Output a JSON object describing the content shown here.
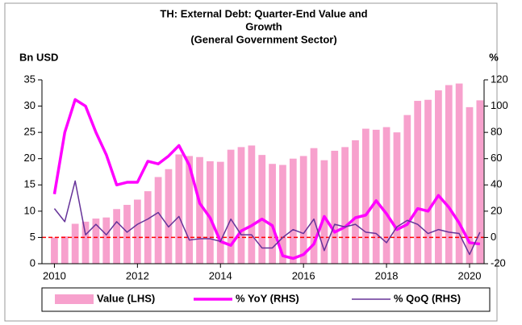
{
  "chart_data": {
    "type": "combo",
    "title": [
      "TH: External Debt: Quarter-End Value and",
      "Growth",
      "(General Government Sector)"
    ],
    "y_label": "Bn USD",
    "y2_label": "%",
    "x": [
      2010,
      2010.25,
      2010.5,
      2010.75,
      2011,
      2011.25,
      2011.5,
      2011.75,
      2012,
      2012.25,
      2012.5,
      2012.75,
      2013,
      2013.25,
      2013.5,
      2013.75,
      2014,
      2014.25,
      2014.5,
      2014.75,
      2015,
      2015.25,
      2015.5,
      2015.75,
      2016,
      2016.25,
      2016.5,
      2016.75,
      2017,
      2017.25,
      2017.5,
      2017.75,
      2018,
      2018.25,
      2018.5,
      2018.75,
      2019,
      2019.25,
      2019.5,
      2019.75,
      2020,
      2020.25
    ],
    "series": [
      {
        "name": "Value (LHS)",
        "kind": "bar",
        "axis": "y",
        "color": "#f7a1cd",
        "values": [
          5,
          5.2,
          7.6,
          8,
          8.6,
          8.8,
          10.4,
          11.2,
          12.2,
          13.8,
          16.5,
          18,
          20.8,
          20.5,
          20.3,
          19.5,
          19.4,
          21.7,
          22.2,
          22.5,
          20.7,
          19,
          18.8,
          20,
          20.5,
          22,
          19.7,
          21.5,
          22.2,
          23.5,
          25.7,
          25.5,
          26,
          25,
          28.3,
          31,
          31.2,
          33,
          34,
          34.3,
          29.8,
          31.1
        ]
      },
      {
        "name": "% YoY (RHS)",
        "kind": "line",
        "axis": "y2",
        "color": "#ff00ff",
        "values": [
          33,
          80,
          105,
          100,
          80,
          63,
          40,
          42,
          42,
          58,
          56,
          62,
          70,
          55,
          26,
          15,
          -3,
          -6,
          5,
          9,
          14,
          9,
          -14,
          -16,
          -13,
          -5,
          16,
          4,
          8,
          15,
          17,
          28,
          18,
          6,
          10,
          22,
          20,
          32,
          23,
          11,
          -4,
          -5
        ]
      },
      {
        "name": "% QoQ (RHS)",
        "kind": "line",
        "axis": "y2",
        "color": "#663399",
        "values": [
          22,
          12,
          43,
          2,
          10,
          2,
          12,
          4,
          10,
          14,
          19,
          8,
          16,
          -2,
          -1,
          -1,
          -3,
          14,
          2,
          2,
          -8,
          -8,
          0,
          6,
          3,
          14,
          -10,
          10,
          8,
          10,
          4,
          3,
          -4,
          8,
          13,
          10,
          3,
          6,
          4,
          3,
          -13,
          4
        ]
      }
    ],
    "xlim": [
      2009.7,
      2020.35
    ],
    "xticks": [
      2010,
      2012,
      2014,
      2016,
      2018,
      2020
    ],
    "ylim": [
      0,
      35
    ],
    "yticks": [
      0,
      5,
      10,
      15,
      20,
      25,
      30,
      35
    ],
    "y2lim": [
      -20,
      120
    ],
    "y2ticks": [
      -20,
      0,
      20,
      40,
      60,
      80,
      100,
      120
    ]
  }
}
